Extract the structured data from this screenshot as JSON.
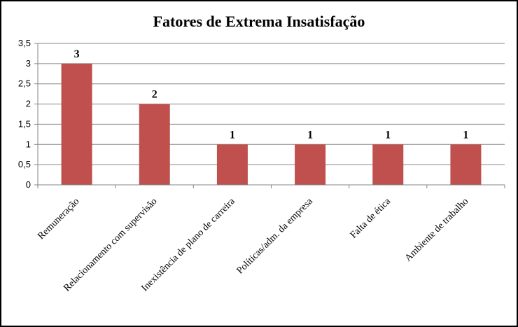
{
  "chart_data": {
    "type": "bar",
    "title": "Fatores de Extrema Insatisfação",
    "categories": [
      "Remuneração",
      "Relacionamento com supervisão",
      "Inexistência de plano de carreira",
      "Políticas/adm. da empresa",
      "Falta de ética",
      "Ambiente de trabalho"
    ],
    "values": [
      3,
      2,
      1,
      1,
      1,
      1
    ],
    "data_labels": [
      "3",
      "2",
      "1",
      "1",
      "1",
      "1"
    ],
    "ylim": [
      0,
      3.5
    ],
    "yticks": [
      "0",
      "0,5",
      "1",
      "1,5",
      "2",
      "2,5",
      "3",
      "3,5"
    ],
    "ytick_values": [
      0,
      0.5,
      1,
      1.5,
      2,
      2.5,
      3,
      3.5
    ],
    "bar_color": "#C0504D",
    "grid": true,
    "legend": "none"
  }
}
